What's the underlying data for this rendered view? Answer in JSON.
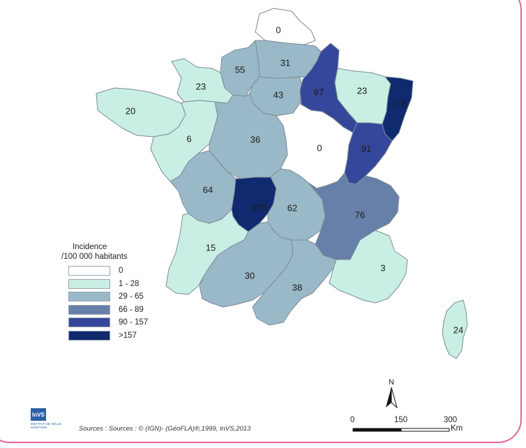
{
  "legend": {
    "title_line1": "Incidence",
    "title_line2": "/100 000 habitants",
    "classes": [
      {
        "label": "0",
        "color": "#ffffff"
      },
      {
        "label": "1 - 28",
        "color": "#c9efe4"
      },
      {
        "label": "29 - 65",
        "color": "#9ab9c8"
      },
      {
        "label": "66 - 89",
        "color": "#6680aa"
      },
      {
        "label": "90 - 157",
        "color": "#35479a"
      },
      {
        "label": ">157",
        "color": "#0f2a6e"
      }
    ]
  },
  "regions": [
    {
      "name": "Nord-Pas-de-Calais",
      "value": "0",
      "class": 0
    },
    {
      "name": "Picardie",
      "value": "31",
      "class": 2
    },
    {
      "name": "Haute-Normandie",
      "value": "55",
      "class": 2
    },
    {
      "name": "Basse-Normandie",
      "value": "23",
      "class": 1
    },
    {
      "name": "Bretagne",
      "value": "20",
      "class": 1
    },
    {
      "name": "Ile-de-France",
      "value": "43",
      "class": 2
    },
    {
      "name": "Champagne-Ardenne",
      "value": "97",
      "class": 4
    },
    {
      "name": "Lorraine",
      "value": "23",
      "class": 1
    },
    {
      "name": "Alsace",
      "value": "178",
      "class": 5
    },
    {
      "name": "Pays de la Loire",
      "value": "6",
      "class": 1
    },
    {
      "name": "Centre",
      "value": "36",
      "class": 2
    },
    {
      "name": "Bourgogne",
      "value": "0",
      "class": 0
    },
    {
      "name": "Franche-Comte",
      "value": "91",
      "class": 4
    },
    {
      "name": "Poitou-Charentes",
      "value": "64",
      "class": 2
    },
    {
      "name": "Limousin",
      "value": "235",
      "class": 5
    },
    {
      "name": "Auvergne",
      "value": "62",
      "class": 2
    },
    {
      "name": "Rhone-Alpes",
      "value": "76",
      "class": 3
    },
    {
      "name": "Aquitaine",
      "value": "15",
      "class": 1
    },
    {
      "name": "Midi-Pyrenees",
      "value": "30",
      "class": 2
    },
    {
      "name": "Languedoc-Roussillon",
      "value": "38",
      "class": 2
    },
    {
      "name": "Provence-Alpes-Cote d'Azur",
      "value": "3",
      "class": 1
    },
    {
      "name": "Corse",
      "value": "24",
      "class": 1
    }
  ],
  "north_arrow": "N",
  "scale": {
    "ticks": [
      "0",
      "150",
      "300"
    ],
    "unit": "Km"
  },
  "sources": "Sources : Sources : © (IGN)- (GéoFLA)®,1999, InVS,2013",
  "logo": {
    "text": "InVS",
    "subtitle": "INSTITUT DE VEILLE SANITAIRE"
  }
}
